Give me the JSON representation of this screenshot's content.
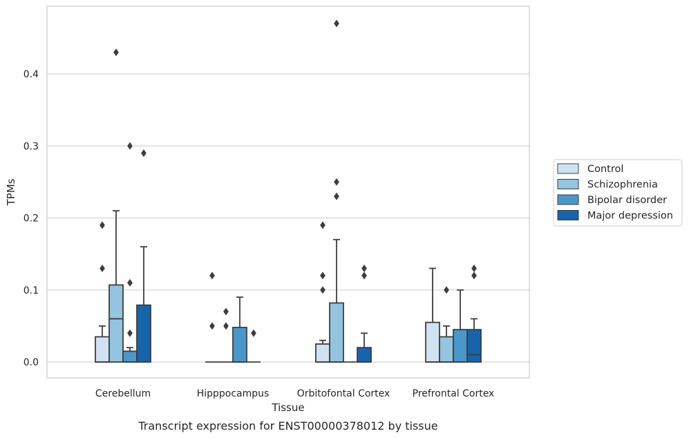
{
  "chart_data": {
    "type": "box",
    "caption": "Transcript expression for ENST00000378012 by tissue",
    "xlabel": "Tissue",
    "ylabel": "TPMs",
    "ylim": [
      -0.023,
      0.49
    ],
    "yticks": [
      0.0,
      0.1,
      0.2,
      0.3,
      0.4
    ],
    "ytick_labels": [
      "0.0",
      "0.1",
      "0.2",
      "0.3",
      "0.4"
    ],
    "grid": "horizontal",
    "legend_position": "right",
    "categories": [
      "Cerebellum",
      "Hipppocampus",
      "Orbitofontal Cortex",
      "Prefrontal Cortex"
    ],
    "series": [
      {
        "name": "Control",
        "color": "#d0e1f2",
        "boxes": [
          {
            "q1": 0.0,
            "median": 0.0,
            "q3": 0.035,
            "whisker_low": 0.0,
            "whisker_high": 0.05,
            "outliers": [
              0.13,
              0.19
            ]
          },
          {
            "q1": 0.0,
            "median": 0.0,
            "q3": 0.0,
            "whisker_low": 0.0,
            "whisker_high": 0.0,
            "outliers": [
              0.05,
              0.12
            ]
          },
          {
            "q1": 0.0,
            "median": 0.0,
            "q3": 0.025,
            "whisker_low": 0.0,
            "whisker_high": 0.03,
            "outliers": [
              0.1,
              0.12,
              0.19
            ]
          },
          {
            "q1": 0.0,
            "median": 0.0,
            "q3": 0.055,
            "whisker_low": 0.0,
            "whisker_high": 0.13,
            "outliers": []
          }
        ]
      },
      {
        "name": "Schizophrenia",
        "color": "#94c4df",
        "boxes": [
          {
            "q1": 0.0,
            "median": 0.06,
            "q3": 0.107,
            "whisker_low": 0.0,
            "whisker_high": 0.21,
            "outliers": [
              0.43
            ]
          },
          {
            "q1": 0.0,
            "median": 0.0,
            "q3": 0.0,
            "whisker_low": 0.0,
            "whisker_high": 0.0,
            "outliers": [
              0.05,
              0.07
            ]
          },
          {
            "q1": 0.0,
            "median": 0.0,
            "q3": 0.082,
            "whisker_low": 0.0,
            "whisker_high": 0.17,
            "outliers": [
              0.23,
              0.25,
              0.47
            ]
          },
          {
            "q1": 0.0,
            "median": 0.0,
            "q3": 0.035,
            "whisker_low": 0.0,
            "whisker_high": 0.05,
            "outliers": [
              0.1
            ]
          }
        ]
      },
      {
        "name": "Bipolar disorder",
        "color": "#4a98c9",
        "boxes": [
          {
            "q1": 0.0,
            "median": 0.0,
            "q3": 0.015,
            "whisker_low": 0.0,
            "whisker_high": 0.02,
            "outliers": [
              0.04,
              0.11,
              0.3
            ]
          },
          {
            "q1": 0.0,
            "median": 0.0,
            "q3": 0.048,
            "whisker_low": 0.0,
            "whisker_high": 0.09,
            "outliers": []
          },
          {
            "q1": 0.0,
            "median": 0.0,
            "q3": 0.0,
            "whisker_low": 0.0,
            "whisker_high": 0.0,
            "outliers": []
          },
          {
            "q1": 0.0,
            "median": 0.0,
            "q3": 0.045,
            "whisker_low": 0.0,
            "whisker_high": 0.1,
            "outliers": []
          }
        ]
      },
      {
        "name": "Major depression",
        "color": "#1764ab",
        "boxes": [
          {
            "q1": 0.0,
            "median": 0.0,
            "q3": 0.079,
            "whisker_low": 0.0,
            "whisker_high": 0.16,
            "outliers": [
              0.29
            ]
          },
          {
            "q1": 0.0,
            "median": 0.0,
            "q3": 0.0,
            "whisker_low": 0.0,
            "whisker_high": 0.0,
            "outliers": [
              0.04
            ]
          },
          {
            "q1": 0.0,
            "median": 0.0,
            "q3": 0.02,
            "whisker_low": 0.0,
            "whisker_high": 0.04,
            "outliers": [
              0.12,
              0.13
            ]
          },
          {
            "q1": 0.0,
            "median": 0.01,
            "q3": 0.045,
            "whisker_low": 0.0,
            "whisker_high": 0.06,
            "outliers": [
              0.12,
              0.13
            ]
          }
        ]
      }
    ]
  }
}
